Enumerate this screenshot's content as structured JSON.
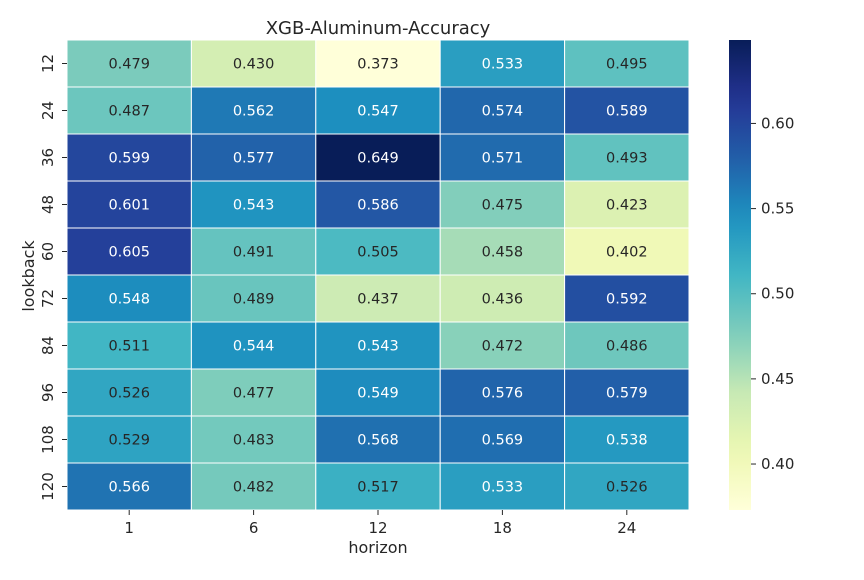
{
  "chart_data": {
    "type": "heatmap",
    "title": "XGB-Aluminum-Accuracy",
    "xlabel": "horizon",
    "ylabel": "lookback",
    "x_categories": [
      "1",
      "6",
      "12",
      "18",
      "24"
    ],
    "y_categories": [
      "12",
      "24",
      "36",
      "48",
      "60",
      "72",
      "84",
      "96",
      "108",
      "120"
    ],
    "values": [
      [
        0.479,
        0.43,
        0.373,
        0.533,
        0.495
      ],
      [
        0.487,
        0.562,
        0.547,
        0.574,
        0.589
      ],
      [
        0.599,
        0.577,
        0.649,
        0.571,
        0.493
      ],
      [
        0.601,
        0.543,
        0.586,
        0.475,
        0.423
      ],
      [
        0.605,
        0.491,
        0.505,
        0.458,
        0.402
      ],
      [
        0.548,
        0.489,
        0.437,
        0.436,
        0.592
      ],
      [
        0.511,
        0.544,
        0.543,
        0.472,
        0.486
      ],
      [
        0.526,
        0.477,
        0.549,
        0.576,
        0.579
      ],
      [
        0.529,
        0.483,
        0.568,
        0.569,
        0.538
      ],
      [
        0.566,
        0.482,
        0.517,
        0.533,
        0.526
      ]
    ],
    "value_labels": [
      [
        "0.479",
        "0.430",
        "0.373",
        "0.533",
        "0.495"
      ],
      [
        "0.487",
        "0.562",
        "0.547",
        "0.574",
        "0.589"
      ],
      [
        "0.599",
        "0.577",
        "0.649",
        "0.571",
        "0.493"
      ],
      [
        "0.601",
        "0.543",
        "0.586",
        "0.475",
        "0.423"
      ],
      [
        "0.605",
        "0.491",
        "0.505",
        "0.458",
        "0.402"
      ],
      [
        "0.548",
        "0.489",
        "0.437",
        "0.436",
        "0.592"
      ],
      [
        "0.511",
        "0.544",
        "0.543",
        "0.472",
        "0.486"
      ],
      [
        "0.526",
        "0.477",
        "0.549",
        "0.576",
        "0.579"
      ],
      [
        "0.529",
        "0.483",
        "0.568",
        "0.569",
        "0.538"
      ],
      [
        "0.566",
        "0.482",
        "0.517",
        "0.533",
        "0.526"
      ]
    ],
    "colormap": "YlGnBu",
    "color_range": [
      0.373,
      0.649
    ],
    "colorbar_ticks": [
      "0.40",
      "0.45",
      "0.50",
      "0.55",
      "0.60"
    ],
    "colorbar_tick_values": [
      0.4,
      0.45,
      0.5,
      0.55,
      0.6
    ],
    "cell_text_colors": {
      "light": "#ffffff",
      "dark": "#262626"
    },
    "grid_line_color": "#ffffff"
  }
}
